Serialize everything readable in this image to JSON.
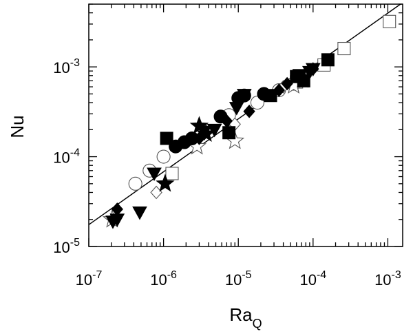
{
  "chart_data": {
    "type": "scatter",
    "title": "",
    "xlabel": "Ra",
    "xlabel_subscript": "Q",
    "ylabel": "Nu",
    "xscale": "log",
    "yscale": "log",
    "xlim": [
      1e-07,
      0.00158
    ],
    "ylim": [
      1e-05,
      0.005
    ],
    "x_ticks": [
      {
        "value": 1e-07,
        "base": "10",
        "exp": "-7"
      },
      {
        "value": 1e-06,
        "base": "10",
        "exp": "-6"
      },
      {
        "value": 1e-05,
        "base": "10",
        "exp": "-5"
      },
      {
        "value": 0.0001,
        "base": "10",
        "exp": "-4"
      },
      {
        "value": 0.001,
        "base": "10",
        "exp": "-3"
      }
    ],
    "y_ticks": [
      {
        "value": 1e-05,
        "base": "10",
        "exp": "-5"
      },
      {
        "value": 0.0001,
        "base": "10",
        "exp": "-4"
      },
      {
        "value": 0.001,
        "base": "10",
        "exp": "-3"
      }
    ],
    "grid": false,
    "legend": "none",
    "fit_line": {
      "x": [
        1e-07,
        0.00158
      ],
      "y": [
        1.75e-05,
        0.0052
      ]
    },
    "series": [
      {
        "marker": "square",
        "filled": true,
        "points": [
          [
            1.1e-06,
            0.00016
          ],
          [
            7.5e-06,
            0.000185
          ],
          [
            2.7e-05,
            0.00048
          ],
          [
            6e-05,
            0.00078
          ],
          [
            7.5e-05,
            0.0007
          ],
          [
            6.5e-05,
            0.0008
          ],
          [
            0.000158,
            0.0012
          ]
        ]
      },
      {
        "marker": "square",
        "filled": false,
        "points": [
          [
            0.00105,
            0.0032
          ],
          [
            0.00026,
            0.0016
          ],
          [
            0.00014,
            0.00105
          ],
          [
            1.3e-06,
            6.5e-05
          ],
          [
            6e-05,
            0.00068
          ]
        ]
      },
      {
        "marker": "circle",
        "filled": true,
        "points": [
          [
            1.45e-06,
            0.00013
          ],
          [
            1.9e-06,
            0.000145
          ],
          [
            2.4e-06,
            0.00016
          ],
          [
            5.8e-06,
            0.00028
          ],
          [
            1e-05,
            0.00045
          ],
          [
            1.2e-05,
            0.00048
          ],
          [
            2.2e-05,
            0.0005
          ]
        ]
      },
      {
        "marker": "circle",
        "filled": false,
        "points": [
          [
            4.2e-07,
            5e-05
          ],
          [
            6.5e-07,
            7e-05
          ],
          [
            1e-06,
            0.0001
          ],
          [
            7.5e-06,
            0.00029
          ],
          [
            1.8e-05,
            0.0004
          ],
          [
            3.5e-05,
            0.00055
          ],
          [
            5.5e-05,
            0.00065
          ]
        ]
      },
      {
        "marker": "diamond",
        "filled": true,
        "points": [
          [
            2.4e-07,
            2.6e-05
          ],
          [
            3e-06,
            0.00016
          ],
          [
            3.5e-06,
            0.00018
          ],
          [
            7e-06,
            0.00025
          ],
          [
            1.4e-05,
            0.00032
          ],
          [
            3.5e-05,
            0.00055
          ],
          [
            4.5e-05,
            0.00065
          ],
          [
            0.0001,
            0.00095
          ]
        ]
      },
      {
        "marker": "diamond",
        "filled": false,
        "points": [
          [
            9e-06,
            0.00023
          ],
          [
            4e-05,
            0.0006
          ],
          [
            8e-07,
            4e-05
          ]
        ]
      },
      {
        "marker": "triangle-down",
        "filled": true,
        "points": [
          [
            2.1e-07,
            1.9e-05
          ],
          [
            2.4e-07,
            2e-05
          ],
          [
            4.8e-07,
            2.4e-05
          ],
          [
            7.5e-07,
            6.5e-05
          ],
          [
            3.5e-06,
            0.00019
          ],
          [
            4.8e-06,
            0.0002
          ],
          [
            9.5e-06,
            0.00035
          ],
          [
            1.2e-05,
            0.00049
          ],
          [
            9e-05,
            0.00088
          ],
          [
            0.0001,
            0.00095
          ]
        ]
      },
      {
        "marker": "star",
        "filled": true,
        "points": [
          [
            1.05e-06,
            5e-05
          ],
          [
            3e-06,
            0.00022
          ],
          [
            3.7e-06,
            0.00018
          ]
        ]
      },
      {
        "marker": "star",
        "filled": false,
        "points": [
          [
            2.05e-07,
            2e-05
          ],
          [
            2.8e-06,
            0.00013
          ],
          [
            9e-06,
            0.00015
          ],
          [
            7.2e-05,
            0.00072
          ],
          [
            5.5e-05,
            0.00062
          ]
        ]
      }
    ]
  }
}
